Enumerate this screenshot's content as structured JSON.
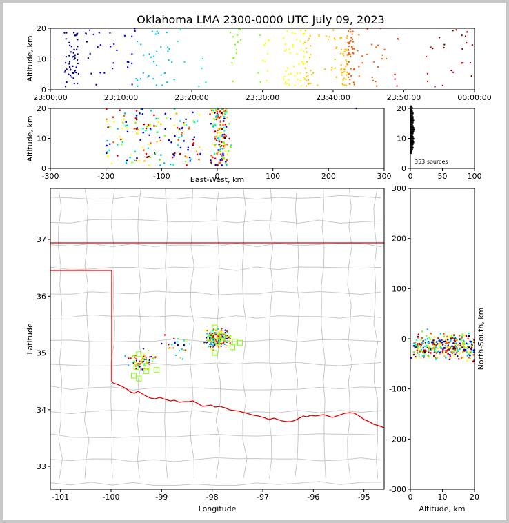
{
  "chart_data": {
    "type": "scatter",
    "title": "Oklahoma LMA 2300-0000 UTC July 09, 2023",
    "colormap": [
      "#000090",
      "#0000ff",
      "#00bfff",
      "#00ffb0",
      "#7fff00",
      "#ffff00",
      "#ffbf00",
      "#ff6000",
      "#ff0000",
      "#a00000"
    ],
    "time_panel": {
      "ylabel": "Altitude, km",
      "ylim": [
        0,
        20
      ],
      "yticks": [
        "0",
        "10",
        "20"
      ],
      "xlim_minutes": [
        0,
        60
      ],
      "xtick_minutes": [
        0,
        10,
        20,
        30,
        40,
        50,
        60
      ],
      "xtick_labels": [
        "23:00:00",
        "23:10:00",
        "23:20:00",
        "23:30:00",
        "23:40:00",
        "23:50:00",
        "00:00:00"
      ]
    },
    "ew_panel": {
      "xlabel": "East-West, km",
      "ylabel": "Altitude, km",
      "xlim": [
        -300,
        300
      ],
      "xticks": [
        "-300",
        "-200",
        "-100",
        "0",
        "100",
        "200",
        "300"
      ],
      "ylim": [
        0,
        20
      ],
      "yticks": [
        "0",
        "10",
        "20"
      ]
    },
    "histogram": {
      "xlim": [
        0,
        100
      ],
      "xticks": [
        "0",
        "50",
        "100"
      ],
      "ylim": [
        0,
        20
      ],
      "yticks": [
        "0",
        "10",
        "20"
      ],
      "annotation": "353 sources"
    },
    "map_panel": {
      "xlabel": "Longitude",
      "ylabel": "Latitude",
      "xlim": [
        -101.2,
        -94.6
      ],
      "ylim": [
        32.6,
        37.9
      ],
      "xticks": [
        "-101",
        "-100",
        "-99",
        "-98",
        "-97",
        "-96",
        "-95"
      ],
      "yticks": [
        "33",
        "34",
        "35",
        "36",
        "37"
      ]
    },
    "ns_panel": {
      "xlabel": "Altitude, km",
      "ylabel": "North-South, km",
      "xlim": [
        0,
        20
      ],
      "xticks": [
        "0",
        "10",
        "20"
      ],
      "ylim": [
        -300,
        300
      ],
      "yticks": [
        "-300",
        "-200",
        "-100",
        "0",
        "100",
        "200",
        "300"
      ]
    }
  }
}
